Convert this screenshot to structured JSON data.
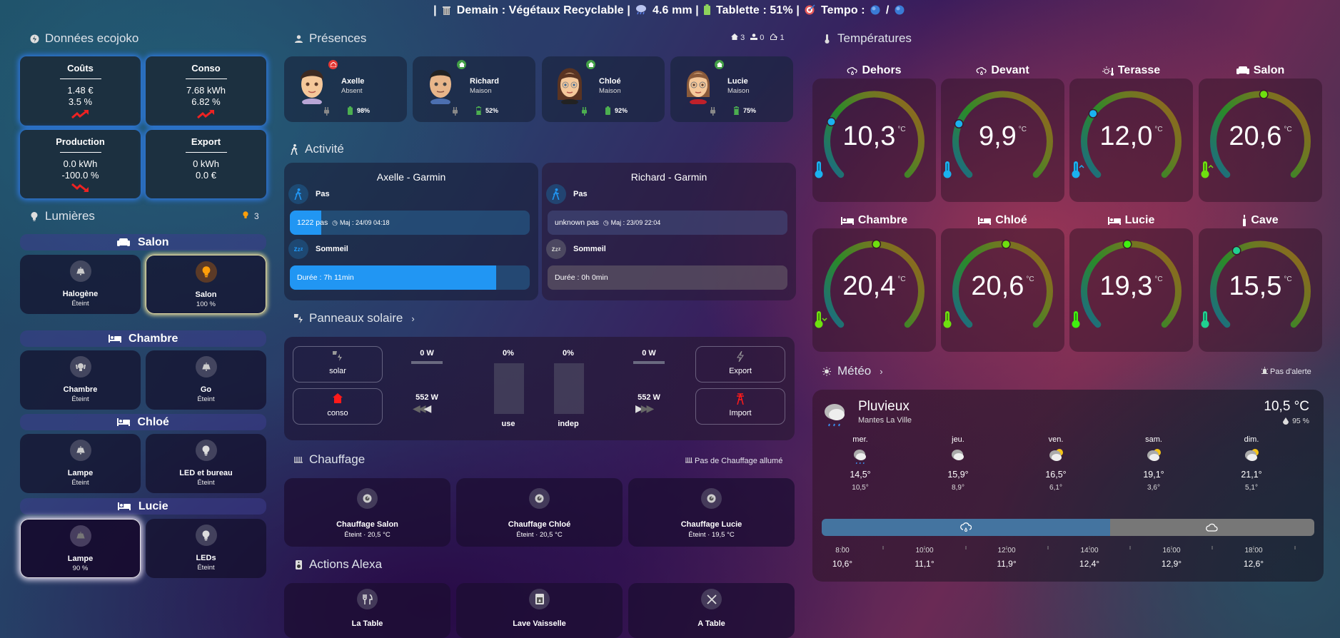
{
  "topbar": {
    "trash_label": "Demain : Végétaux Recyclable",
    "rain": "4.6 mm",
    "tablet": "Tablette : 51%",
    "tempo_label": "Tempo :",
    "sep": "|",
    "slash": "/",
    "tempo_colors": [
      "#3a7bd5",
      "#3a7bd5"
    ]
  },
  "ecojoko": {
    "title": "Données ecojoko",
    "tiles": [
      {
        "title": "Coûts",
        "line1": "1.48 €",
        "line2": "3.5 %",
        "trend": "up"
      },
      {
        "title": "Conso",
        "line1": "7.68 kWh",
        "line2": "6.82 %",
        "trend": "up"
      },
      {
        "title": "Production",
        "line1": "0.0 kWh",
        "line2": "-100.0 %",
        "trend": "down"
      },
      {
        "title": "Export",
        "line1": "0 kWh",
        "line2": "0.0 €",
        "trend": "none"
      }
    ]
  },
  "lights": {
    "title": "Lumières",
    "count": "3",
    "rooms": [
      {
        "name": "Salon",
        "items": [
          {
            "name": "Halogène",
            "state": "Éteint"
          },
          {
            "name": "Salon",
            "state": "100 %"
          }
        ]
      },
      {
        "name": "Chambre",
        "items": [
          {
            "name": "Chambre",
            "state": "Éteint"
          },
          {
            "name": "Go",
            "state": "Éteint"
          }
        ]
      },
      {
        "name": "Chloé",
        "items": [
          {
            "name": "Lampe",
            "state": "Éteint"
          },
          {
            "name": "LED et bureau",
            "state": "Éteint"
          }
        ]
      },
      {
        "name": "Lucie",
        "items": [
          {
            "name": "Lampe",
            "state": "90 %"
          },
          {
            "name": "LEDs",
            "state": "Éteint"
          }
        ]
      }
    ]
  },
  "presence": {
    "title": "Présences",
    "counts": {
      "home": "3",
      "away_person": "0",
      "away": "1"
    },
    "people": [
      {
        "name": "Axelle",
        "state": "Absent",
        "battery": "98%",
        "badge_color": "#e53935"
      },
      {
        "name": "Richard",
        "state": "Maison",
        "battery": "52%",
        "badge_color": "#43a047"
      },
      {
        "name": "Chloé",
        "state": "Maison",
        "battery": "92%",
        "badge_color": "#43a047"
      },
      {
        "name": "Lucie",
        "state": "Maison",
        "battery": "75%",
        "badge_color": "#43a047"
      }
    ]
  },
  "activity": {
    "title": "Activité",
    "cards": [
      {
        "title": "Axelle - Garmin",
        "steps_label": "Pas",
        "steps": "1222 pas",
        "steps_update": "Maj : 24/09 04:18",
        "steps_pct": 13,
        "sleep_label": "Sommeil",
        "sleep": "Durée : 7h 11min",
        "sleep_pct": 86
      },
      {
        "title": "Richard - Garmin",
        "steps_label": "Pas",
        "steps": "unknown pas",
        "steps_update": "Maj : 23/09 22:04",
        "steps_pct": 0,
        "sleep_label": "Sommeil",
        "sleep": "Durée : 0h 0min",
        "sleep_pct": 0
      }
    ]
  },
  "solar": {
    "title": "Panneaux solaire",
    "solar_label": "solar",
    "conso_label": "conso",
    "export_label": "Export",
    "import_label": "Import",
    "solar_w": "0 W",
    "export_w": "0 W",
    "conso_w": "552 W",
    "import_w": "552 W",
    "use_pct": "0%",
    "indep_pct": "0%",
    "use_label": "use",
    "indep_label": "indep"
  },
  "heating": {
    "title": "Chauffage",
    "status": "Pas de Chauffage allumé",
    "items": [
      {
        "name": "Chauffage Salon",
        "state": "Éteint · 20,5 °C"
      },
      {
        "name": "Chauffage Chloé",
        "state": "Éteint · 20,5 °C"
      },
      {
        "name": "Chauffage Lucie",
        "state": "Éteint · 19,5 °C"
      }
    ]
  },
  "alexa": {
    "title": "Actions Alexa",
    "items": [
      {
        "name": "La Table"
      },
      {
        "name": "Lave Vaisselle"
      },
      {
        "name": "A Table"
      }
    ]
  },
  "temperatures": {
    "title": "Températures",
    "unit": "°C",
    "sensors": [
      {
        "name": "Dehors",
        "value": "10,3",
        "num": 10.3,
        "color": "#1ab2f0",
        "trend": ""
      },
      {
        "name": "Devant",
        "value": "9,9",
        "num": 9.9,
        "color": "#1ab2f0",
        "trend": ""
      },
      {
        "name": "Terasse",
        "value": "12,0",
        "num": 12.0,
        "color": "#1ab2f0",
        "trend": "up"
      },
      {
        "name": "Salon",
        "value": "20,6",
        "num": 20.6,
        "color": "#6ee00f",
        "trend": "up"
      },
      {
        "name": "Chambre",
        "value": "20,4",
        "num": 20.4,
        "color": "#6ee00f",
        "trend": "down"
      },
      {
        "name": "Chloé",
        "value": "20,6",
        "num": 20.6,
        "color": "#6ee00f",
        "trend": ""
      },
      {
        "name": "Lucie",
        "value": "19,3",
        "num": 19.3,
        "color": "#40f010",
        "trend": ""
      },
      {
        "name": "Cave",
        "value": "15,5",
        "num": 15.5,
        "color": "#20d090",
        "trend": ""
      }
    ]
  },
  "weather": {
    "title": "Météo",
    "alert": "Pas d'alerte",
    "condition": "Pluvieux",
    "location": "Mantes La Ville",
    "temp": "10,5 °C",
    "humidity": "95 %",
    "forecast": [
      {
        "day": "mer.",
        "hi": "14,5°",
        "lo": "10,5°",
        "icon": "rainy"
      },
      {
        "day": "jeu.",
        "hi": "15,9°",
        "lo": "8,9°",
        "icon": "cloudy"
      },
      {
        "day": "ven.",
        "hi": "16,5°",
        "lo": "6,1°",
        "icon": "partly-cloudy"
      },
      {
        "day": "sam.",
        "hi": "19,1°",
        "lo": "3,6°",
        "icon": "partly-cloudy"
      },
      {
        "day": "dim.",
        "hi": "21,1°",
        "lo": "5,1°",
        "icon": "partly-cloudy"
      }
    ],
    "hourly": [
      {
        "hour": "8:00",
        "temp": "10,6°"
      },
      {
        "hour": "10:00",
        "temp": "11,1°"
      },
      {
        "hour": "12:00",
        "temp": "11,9°"
      },
      {
        "hour": "14:00",
        "temp": "12,4°"
      },
      {
        "hour": "16:00",
        "temp": "12,9°"
      },
      {
        "hour": "18:00",
        "temp": "12,6°"
      }
    ],
    "timeline": [
      {
        "condition": "rainy",
        "color": "#4474a0",
        "pct": 58.5
      },
      {
        "condition": "cloudy",
        "color": "#777777",
        "pct": 41.5
      }
    ]
  }
}
